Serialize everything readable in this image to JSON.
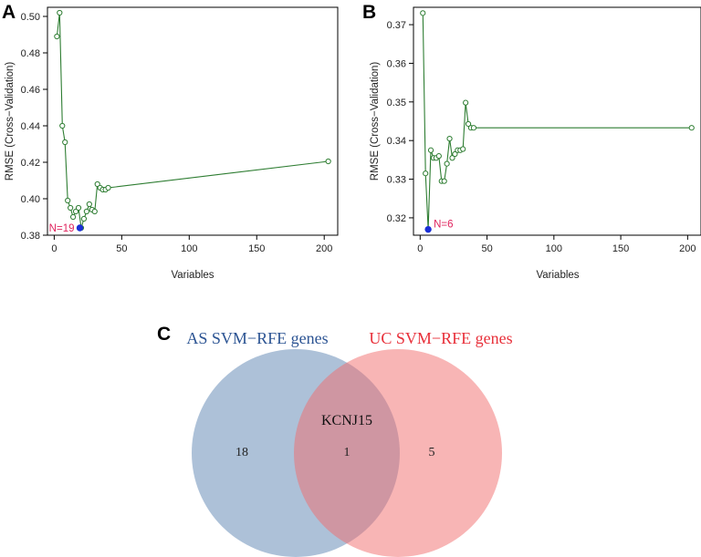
{
  "colors": {
    "line": "#2e7d32",
    "point": "#2e7d32",
    "optimum": "#1a2fd6",
    "annotation": "#e0245e",
    "set_a": "#5b84b1",
    "set_b": "#f26b6b",
    "title_a": "#2c5493",
    "title_b": "#e8303a"
  },
  "chart_data": [
    {
      "panel": "A",
      "type": "line",
      "title": "",
      "xlabel": "Variables",
      "ylabel": "RMSE (Cross−Validation)",
      "xlim": [
        -5,
        210
      ],
      "ylim": [
        0.38,
        0.505
      ],
      "xticks": [
        0,
        50,
        100,
        150,
        200
      ],
      "yticks": [
        0.38,
        0.4,
        0.42,
        0.44,
        0.46,
        0.48,
        0.5
      ],
      "ytick_labels": [
        "0.38",
        "0.40",
        "0.42",
        "0.44",
        "0.46",
        "0.48",
        "0.50"
      ],
      "x": [
        2,
        4,
        6,
        8,
        10,
        12,
        14,
        16,
        18,
        20,
        22,
        24,
        26,
        28,
        30,
        32,
        34,
        36,
        38,
        40,
        203
      ],
      "y": [
        0.489,
        0.502,
        0.44,
        0.431,
        0.399,
        0.395,
        0.39,
        0.393,
        0.395,
        0.384,
        0.389,
        0.393,
        0.397,
        0.394,
        0.393,
        0.408,
        0.406,
        0.405,
        0.405,
        0.406,
        0.4205
      ],
      "optimum": {
        "x": 19,
        "y": 0.384,
        "label": "N=19"
      }
    },
    {
      "panel": "B",
      "type": "line",
      "title": "",
      "xlabel": "Variables",
      "ylabel": "RMSE (Cross−Validation)",
      "xlim": [
        -5,
        210
      ],
      "ylim": [
        0.3155,
        0.3745
      ],
      "xticks": [
        0,
        50,
        100,
        150,
        200
      ],
      "yticks": [
        0.32,
        0.33,
        0.34,
        0.35,
        0.36,
        0.37
      ],
      "ytick_labels": [
        "0.32",
        "0.33",
        "0.34",
        "0.35",
        "0.36",
        "0.37"
      ],
      "x": [
        2,
        4,
        6,
        8,
        10,
        12,
        14,
        16,
        18,
        20,
        22,
        24,
        26,
        28,
        30,
        32,
        34,
        36,
        38,
        40,
        203
      ],
      "y": [
        0.373,
        0.3315,
        0.317,
        0.3375,
        0.3355,
        0.3355,
        0.336,
        0.3295,
        0.3295,
        0.334,
        0.3405,
        0.3355,
        0.3365,
        0.3375,
        0.3375,
        0.3378,
        0.3498,
        0.3443,
        0.3433,
        0.3433,
        0.3433
      ],
      "optimum": {
        "x": 6,
        "y": 0.317,
        "label": "N=6"
      }
    },
    {
      "panel": "C",
      "type": "venn",
      "sets": [
        {
          "name": "AS SVM−RFE genes",
          "only_count": "18"
        },
        {
          "name": "UC SVM−RFE genes",
          "only_count": "5"
        }
      ],
      "intersection": {
        "count": "1",
        "genes": [
          "KCNJ15"
        ]
      }
    }
  ]
}
